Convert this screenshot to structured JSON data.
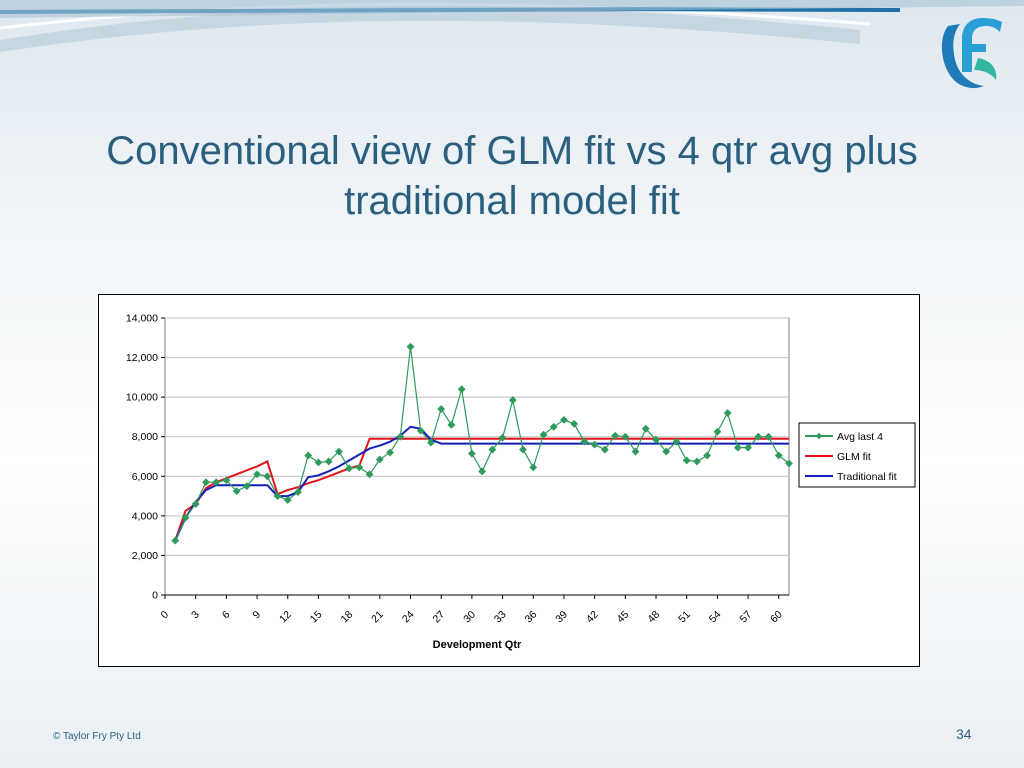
{
  "slide": {
    "title_line1": "Conventional view of GLM fit vs 4 qtr avg plus",
    "title_line2": "traditional model fit",
    "footer": "© Taylor Fry Pty Ltd",
    "page_number": "34",
    "logo_icon": "taylor-fry-logo-icon",
    "accent_color": "#2b5f7e"
  },
  "chart_data": {
    "type": "line",
    "title": "",
    "xlabel": "Development Qtr",
    "ylabel": "",
    "xlim": [
      0,
      61
    ],
    "ylim": [
      0,
      14000
    ],
    "x_ticks": [
      0,
      3,
      6,
      9,
      12,
      15,
      18,
      21,
      24,
      27,
      30,
      33,
      36,
      39,
      42,
      45,
      48,
      51,
      54,
      57,
      60
    ],
    "y_ticks": [
      0,
      2000,
      4000,
      6000,
      8000,
      10000,
      12000,
      14000
    ],
    "y_tick_labels": [
      "0",
      "2,000",
      "4,000",
      "6,000",
      "8,000",
      "10,000",
      "12,000",
      "14,000"
    ],
    "grid": "horizontal",
    "legend_position": "right",
    "series": [
      {
        "name": "Avg last 4",
        "color": "#2e9a5c",
        "marker": "diamond",
        "x": [
          1,
          2,
          3,
          4,
          5,
          6,
          7,
          8,
          9,
          10,
          11,
          12,
          13,
          14,
          15,
          16,
          17,
          18,
          19,
          20,
          21,
          22,
          23,
          24,
          25,
          26,
          27,
          28,
          29,
          30,
          31,
          32,
          33,
          34,
          35,
          36,
          37,
          38,
          39,
          40,
          41,
          42,
          43,
          44,
          45,
          46,
          47,
          48,
          49,
          50,
          51,
          52,
          53,
          54,
          55,
          56,
          57,
          58,
          59,
          60,
          61
        ],
        "y": [
          2750,
          3900,
          4600,
          5700,
          5700,
          5800,
          5250,
          5500,
          6100,
          6000,
          5000,
          4800,
          5200,
          7050,
          6700,
          6750,
          7250,
          6400,
          6450,
          6100,
          6850,
          7200,
          8000,
          12550,
          8300,
          7700,
          9400,
          8600,
          10400,
          7150,
          6250,
          7350,
          7950,
          9850,
          7350,
          6450,
          8100,
          8500,
          8850,
          8650,
          7750,
          7600,
          7350,
          8050,
          8000,
          7250,
          8400,
          7850,
          7250,
          7750,
          6800,
          6750,
          7050,
          8250,
          9200,
          7450,
          7450,
          8000,
          8000,
          7050,
          6650
        ]
      },
      {
        "name": "GLM fit",
        "color": "#e3141b",
        "x": [
          1,
          2,
          3,
          4,
          5,
          6,
          7,
          8,
          9,
          10,
          11,
          12,
          13,
          14,
          15,
          16,
          17,
          18,
          19,
          20,
          21,
          22,
          23,
          24,
          25,
          26,
          27,
          28,
          29,
          30,
          31,
          32,
          33,
          34,
          35,
          36,
          37,
          38,
          39,
          40,
          41,
          42,
          43,
          44,
          45,
          46,
          47,
          48,
          49,
          50,
          51,
          52,
          53,
          54,
          55,
          56,
          57,
          58,
          59,
          60,
          61
        ],
        "y": [
          2750,
          4250,
          4600,
          5400,
          5700,
          5900,
          6100,
          6300,
          6500,
          6750,
          5100,
          5300,
          5450,
          5650,
          5800,
          6000,
          6200,
          6400,
          6550,
          7900,
          7900,
          7900,
          7900,
          7900,
          7900,
          7900,
          7900,
          7900,
          7900,
          7900,
          7900,
          7900,
          7900,
          7900,
          7900,
          7900,
          7900,
          7900,
          7900,
          7900,
          7900,
          7900,
          7900,
          7900,
          7900,
          7900,
          7900,
          7900,
          7900,
          7900,
          7900,
          7900,
          7900,
          7900,
          7900,
          7900,
          7900,
          7900,
          7900,
          7900,
          7900
        ]
      },
      {
        "name": "Traditional fit",
        "color": "#1220b8",
        "x": [
          1,
          2,
          3,
          4,
          5,
          6,
          7,
          8,
          9,
          10,
          11,
          12,
          13,
          14,
          15,
          16,
          17,
          18,
          19,
          20,
          21,
          22,
          23,
          24,
          25,
          26,
          27,
          28,
          29,
          30,
          31,
          32,
          33,
          34,
          35,
          36,
          37,
          38,
          39,
          40,
          41,
          42,
          43,
          44,
          45,
          46,
          47,
          48,
          49,
          50,
          51,
          52,
          53,
          54,
          55,
          56,
          57,
          58,
          59,
          60,
          61
        ],
        "y": [
          2750,
          3900,
          4700,
          5300,
          5550,
          5550,
          5550,
          5550,
          5550,
          5550,
          5000,
          5000,
          5200,
          5950,
          6050,
          6250,
          6500,
          6800,
          7100,
          7400,
          7550,
          7750,
          8050,
          8500,
          8400,
          7850,
          7650,
          7650,
          7650,
          7650,
          7650,
          7650,
          7650,
          7650,
          7650,
          7650,
          7650,
          7650,
          7650,
          7650,
          7650,
          7650,
          7650,
          7650,
          7650,
          7650,
          7650,
          7650,
          7650,
          7650,
          7650,
          7650,
          7650,
          7650,
          7650,
          7650,
          7650,
          7650,
          7650,
          7650,
          7650
        ]
      }
    ]
  }
}
